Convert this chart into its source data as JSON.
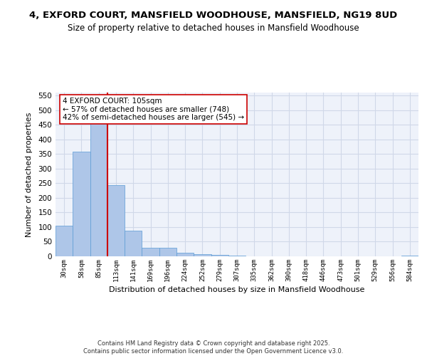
{
  "title_line1": "4, EXFORD COURT, MANSFIELD WOODHOUSE, MANSFIELD, NG19 8UD",
  "title_line2": "Size of property relative to detached houses in Mansfield Woodhouse",
  "xlabel": "Distribution of detached houses by size in Mansfield Woodhouse",
  "ylabel": "Number of detached properties",
  "categories": [
    "30sqm",
    "58sqm",
    "85sqm",
    "113sqm",
    "141sqm",
    "169sqm",
    "196sqm",
    "224sqm",
    "252sqm",
    "279sqm",
    "307sqm",
    "335sqm",
    "362sqm",
    "390sqm",
    "418sqm",
    "446sqm",
    "473sqm",
    "501sqm",
    "529sqm",
    "556sqm",
    "584sqm"
  ],
  "values": [
    104,
    357,
    457,
    244,
    88,
    30,
    30,
    13,
    7,
    5,
    3,
    0,
    1,
    0,
    0,
    0,
    0,
    0,
    0,
    0,
    3
  ],
  "bar_color": "#aec6e8",
  "bar_edge_color": "#5b9bd5",
  "grid_color": "#d0d8e8",
  "vline_x": 2.5,
  "vline_color": "#cc0000",
  "annotation_text": "4 EXFORD COURT: 105sqm\n← 57% of detached houses are smaller (748)\n42% of semi-detached houses are larger (545) →",
  "annotation_box_color": "#ffffff",
  "annotation_box_edge": "#cc0000",
  "ylim": [
    0,
    560
  ],
  "yticks": [
    0,
    50,
    100,
    150,
    200,
    250,
    300,
    350,
    400,
    450,
    500,
    550
  ],
  "footer": "Contains HM Land Registry data © Crown copyright and database right 2025.\nContains public sector information licensed under the Open Government Licence v3.0.",
  "bg_color": "#eef2fa",
  "title_fontsize": 9.5,
  "subtitle_fontsize": 8.5,
  "ann_fontsize": 7.5
}
